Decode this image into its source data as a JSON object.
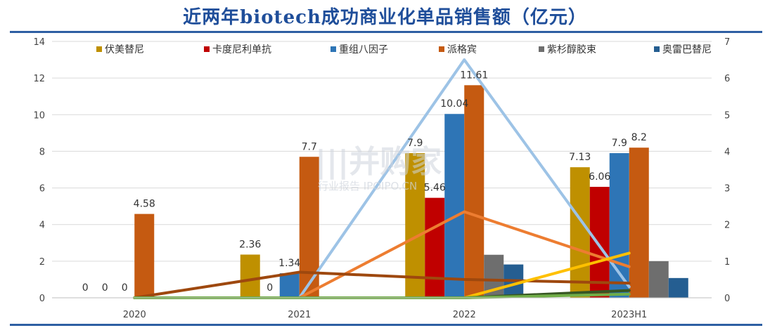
{
  "page": {
    "title": "近两年biotech成功商业化单品销售额（亿元）"
  },
  "watermark": {
    "main": "|||并购家",
    "sub": "行业报告 IPOIPO.CN"
  },
  "chart_data": {
    "type": "bar",
    "categories": [
      "2020",
      "2021",
      "2022",
      "2023H1"
    ],
    "ylim": [
      0,
      14
    ],
    "yticks": [
      0,
      2,
      4,
      6,
      8,
      10,
      12,
      14
    ],
    "y2lim": [
      0,
      7
    ],
    "y2ticks": [
      0,
      1,
      2,
      3,
      4,
      5,
      6,
      7
    ],
    "legend_position": "top",
    "grid": true,
    "series": [
      {
        "name": "伏美替尼",
        "color": "#bf9000",
        "values": [
          0,
          2.36,
          7.9,
          7.13
        ],
        "labels": [
          "0",
          "2.36",
          "7.9",
          "7.13"
        ]
      },
      {
        "name": "卡度尼利单抗",
        "color": "#c00000",
        "values": [
          0,
          0,
          5.46,
          6.06
        ],
        "labels": [
          "0",
          "0",
          "5.46",
          "6.06"
        ]
      },
      {
        "name": "重组八因子",
        "color": "#2e75b6",
        "values": [
          0,
          1.34,
          10.04,
          7.9
        ],
        "labels": [
          "0",
          "1.34",
          "10.04",
          "7.9"
        ]
      },
      {
        "name": "派格宾",
        "color": "#c55a11",
        "values": [
          4.58,
          7.7,
          11.61,
          8.2
        ],
        "labels": [
          "4.58",
          "7.7",
          "11.61",
          "8.2"
        ]
      },
      {
        "name": "紫杉醇胶束",
        "color": "#6e6e6e",
        "values": [
          0,
          0,
          2.35,
          2.0
        ],
        "labels": []
      },
      {
        "name": "奥雷巴替尼",
        "color": "#255e91",
        "values": [
          0,
          0,
          1.82,
          1.08
        ],
        "labels": []
      }
    ],
    "lines": [
      {
        "color": "#9dc3e6",
        "axis": "secondary",
        "values": [
          0,
          0,
          6.5,
          0.3
        ]
      },
      {
        "color": "#ed7d31",
        "axis": "secondary",
        "values": [
          0,
          0,
          2.35,
          0.85
        ]
      },
      {
        "color": "#9e480e",
        "axis": "secondary",
        "values": [
          0,
          0.7,
          0.5,
          0.4
        ]
      },
      {
        "color": "#ffc000",
        "axis": "secondary",
        "values": [
          0,
          0,
          0,
          1.22
        ]
      },
      {
        "color": "#375623",
        "axis": "secondary",
        "values": [
          0,
          0,
          0,
          0.2
        ]
      },
      {
        "color": "#70ad47",
        "axis": "secondary",
        "values": [
          0,
          0,
          0,
          0.1
        ]
      }
    ]
  }
}
